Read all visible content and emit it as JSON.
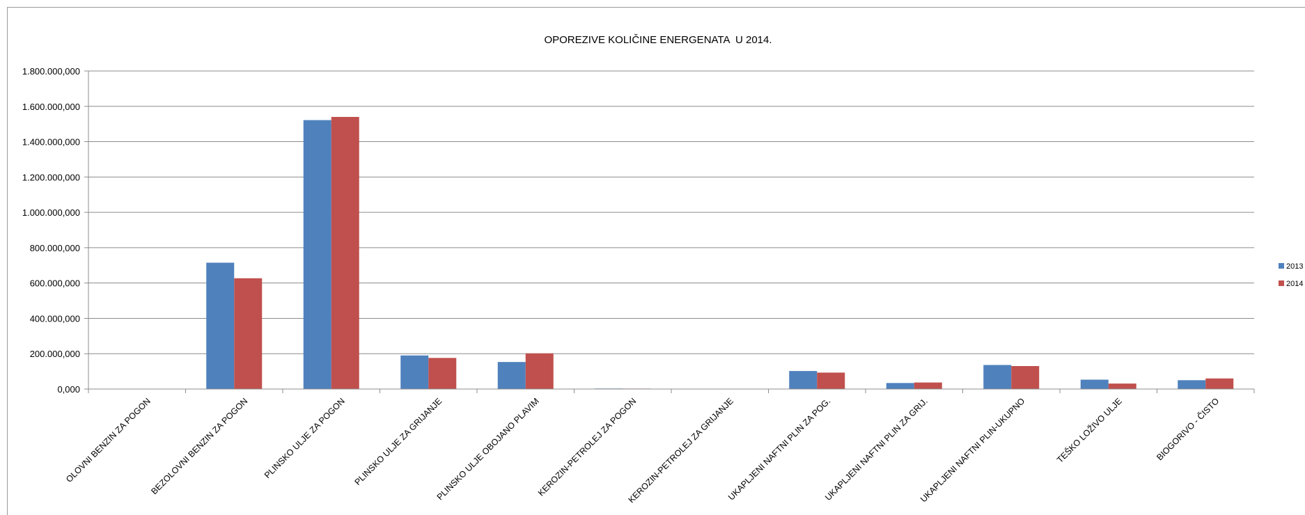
{
  "chart_data": {
    "type": "bar",
    "title": "OPOREZIVE KOLIČINE ENERGENATA  U 2014.",
    "categories": [
      "OLOVNI BENZIN ZA POGON",
      "BEZOLOVNI BENZIN ZA POGON",
      "PLINSKO ULJE ZA POGON",
      "PLINSKO ULJE ZA GRIJANJE",
      "PLINSKO ULJE OBOJANO PLAVIM",
      "KEROZIN-PETROLEJ ZA POGON",
      "KEROZIN-PETROLEJ ZA GRIJANJE",
      "UKAPLJENI NAFTNI PLIN ZA POG.",
      "UKAPLJENI NAFTNI PLIN ZA GRIJ.",
      "UKAPLJENI NAFTNI PLIN-UKUPNO",
      "TEŠKO LOŽIVO ULJE",
      "BIOGORIVO - ČISTO"
    ],
    "series": [
      {
        "name": "2013",
        "color": "#4f81bd",
        "values": [
          500000,
          715000000,
          1522000000,
          190000000,
          153000000,
          3000000,
          500000,
          102000000,
          34000000,
          136000000,
          53000000,
          50000000
        ]
      },
      {
        "name": "2014",
        "color": "#c0504d",
        "values": [
          300000,
          627000000,
          1540000000,
          176000000,
          202000000,
          2500000,
          300000,
          93000000,
          37000000,
          130000000,
          31000000,
          60000000
        ]
      }
    ],
    "ylim": [
      0,
      1800000000
    ],
    "yticks": [
      0,
      200000000,
      400000000,
      600000000,
      800000000,
      1000000000,
      1200000000,
      1400000000,
      1600000000,
      1800000000
    ],
    "ytick_labels": [
      "0,000",
      "200.000,000",
      "400.000,000",
      "600.000,000",
      "800.000,000",
      "1.000.000,000",
      "1.200.000,000",
      "1.400.000,000",
      "1.600.000,000",
      "1.800.000,000"
    ],
    "xlabel": "",
    "ylabel": "",
    "grid": true,
    "legend_position": "right"
  }
}
